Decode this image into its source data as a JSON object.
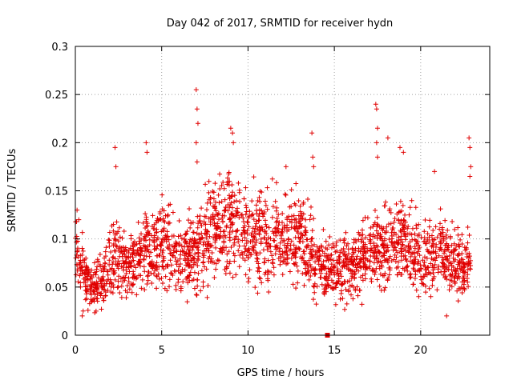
{
  "chart_data": {
    "type": "scatter",
    "title": "Day 042 of 2017, SRMTID for receiver hydn",
    "xlabel": "GPS time / hours",
    "ylabel": "SRMTID / TECUs",
    "xlim": [
      0,
      24
    ],
    "ylim": [
      0,
      0.3
    ],
    "x_ticks": [
      0,
      5,
      10,
      15,
      20
    ],
    "x_tick_labels": [
      "0",
      "5",
      "10",
      "15",
      "20"
    ],
    "y_ticks": [
      0,
      0.05,
      0.1,
      0.15,
      0.2,
      0.25,
      0.3
    ],
    "y_tick_labels": [
      "0",
      "0.05",
      "0.1",
      "0.15",
      "0.2",
      "0.25",
      "0.3"
    ],
    "grid": true,
    "marker": "+",
    "color": "#e00000",
    "series": [
      {
        "name": "SRMTID",
        "trend": [
          [
            0.0,
            0.09
          ],
          [
            0.3,
            0.07
          ],
          [
            0.7,
            0.055
          ],
          [
            1.0,
            0.05
          ],
          [
            1.5,
            0.06
          ],
          [
            2.0,
            0.075
          ],
          [
            2.5,
            0.08
          ],
          [
            3.0,
            0.07
          ],
          [
            3.5,
            0.075
          ],
          [
            4.0,
            0.085
          ],
          [
            4.5,
            0.09
          ],
          [
            5.0,
            0.1
          ],
          [
            5.5,
            0.09
          ],
          [
            6.0,
            0.085
          ],
          [
            6.5,
            0.08
          ],
          [
            7.0,
            0.085
          ],
          [
            7.5,
            0.1
          ],
          [
            8.0,
            0.11
          ],
          [
            8.5,
            0.12
          ],
          [
            9.0,
            0.125
          ],
          [
            9.5,
            0.115
          ],
          [
            10.0,
            0.11
          ],
          [
            10.5,
            0.105
          ],
          [
            11.0,
            0.1
          ],
          [
            11.5,
            0.105
          ],
          [
            12.0,
            0.1
          ],
          [
            12.5,
            0.105
          ],
          [
            13.0,
            0.1
          ],
          [
            13.5,
            0.09
          ],
          [
            14.0,
            0.075
          ],
          [
            14.5,
            0.07
          ],
          [
            15.0,
            0.065
          ],
          [
            15.5,
            0.07
          ],
          [
            16.0,
            0.07
          ],
          [
            16.5,
            0.08
          ],
          [
            17.0,
            0.085
          ],
          [
            17.5,
            0.09
          ],
          [
            18.0,
            0.095
          ],
          [
            18.5,
            0.1
          ],
          [
            19.0,
            0.095
          ],
          [
            19.5,
            0.085
          ],
          [
            20.0,
            0.08
          ],
          [
            20.5,
            0.08
          ],
          [
            21.0,
            0.085
          ],
          [
            21.5,
            0.08
          ],
          [
            22.0,
            0.075
          ],
          [
            22.5,
            0.07
          ],
          [
            22.8,
            0.08
          ]
        ],
        "spikes": [
          [
            0.1,
            0.13
          ],
          [
            0.2,
            0.12
          ],
          [
            2.3,
            0.195
          ],
          [
            2.35,
            0.175
          ],
          [
            4.1,
            0.2
          ],
          [
            4.15,
            0.19
          ],
          [
            5.4,
            0.135
          ],
          [
            7.0,
            0.255
          ],
          [
            7.05,
            0.235
          ],
          [
            7.1,
            0.22
          ],
          [
            7.0,
            0.2
          ],
          [
            7.05,
            0.18
          ],
          [
            9.0,
            0.215
          ],
          [
            9.1,
            0.21
          ],
          [
            9.15,
            0.2
          ],
          [
            12.2,
            0.175
          ],
          [
            13.7,
            0.21
          ],
          [
            13.75,
            0.185
          ],
          [
            13.8,
            0.175
          ],
          [
            17.4,
            0.24
          ],
          [
            17.45,
            0.235
          ],
          [
            17.5,
            0.215
          ],
          [
            17.45,
            0.2
          ],
          [
            17.5,
            0.185
          ],
          [
            18.1,
            0.205
          ],
          [
            18.8,
            0.195
          ],
          [
            19.0,
            0.19
          ],
          [
            20.8,
            0.17
          ],
          [
            22.8,
            0.205
          ],
          [
            22.85,
            0.195
          ],
          [
            22.9,
            0.175
          ],
          [
            22.85,
            0.165
          ],
          [
            21.5,
            0.02
          ],
          [
            0.4,
            0.02
          ],
          [
            1.2,
            0.025
          ]
        ],
        "outlier": [
          14.6,
          0.0
        ],
        "points_per_hour": 100,
        "max_hour": 22.9
      }
    ]
  }
}
